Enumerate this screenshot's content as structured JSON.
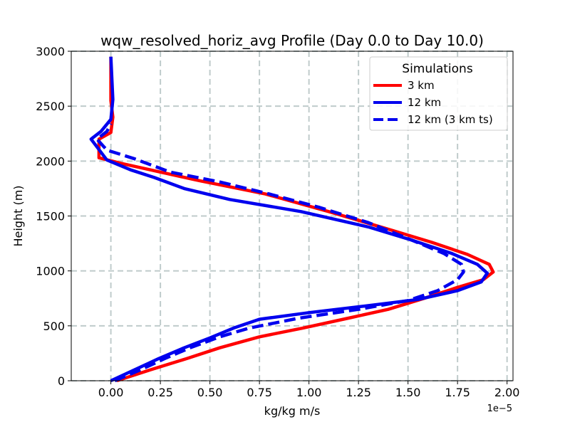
{
  "chart_data": {
    "type": "line",
    "title": "wqw_resolved_horiz_avg Profile (Day 0.0 to Day 10.0)",
    "xlabel": "kg/kg m/s",
    "ylabel": "Height (m)",
    "x_offset_label": "1e−5",
    "xlim": [
      -0.2,
      2.03
    ],
    "ylim": [
      0,
      3000
    ],
    "xticks": [
      0.0,
      0.25,
      0.5,
      0.75,
      1.0,
      1.25,
      1.5,
      1.75,
      2.0
    ],
    "xtick_labels": [
      "0.00",
      "0.25",
      "0.50",
      "0.75",
      "1.00",
      "1.25",
      "1.50",
      "1.75",
      "2.00"
    ],
    "yticks": [
      0,
      500,
      1000,
      1500,
      2000,
      2500,
      3000
    ],
    "ytick_labels": [
      "0",
      "500",
      "1000",
      "1500",
      "2000",
      "2500",
      "3000"
    ],
    "grid": true,
    "legend": {
      "title": "Simulations",
      "location": "top-right"
    },
    "series": [
      {
        "name": "3 km",
        "color": "#ff0000",
        "linestyle": "solid",
        "points": [
          [
            0.03,
            0
          ],
          [
            0.2,
            100
          ],
          [
            0.38,
            200
          ],
          [
            0.55,
            300
          ],
          [
            0.75,
            400
          ],
          [
            0.97,
            480
          ],
          [
            1.2,
            570
          ],
          [
            1.4,
            650
          ],
          [
            1.58,
            750
          ],
          [
            1.75,
            850
          ],
          [
            1.88,
            920
          ],
          [
            1.93,
            990
          ],
          [
            1.91,
            1060
          ],
          [
            1.8,
            1150
          ],
          [
            1.62,
            1260
          ],
          [
            1.4,
            1380
          ],
          [
            1.1,
            1540
          ],
          [
            0.78,
            1700
          ],
          [
            0.45,
            1820
          ],
          [
            0.2,
            1920
          ],
          [
            0.05,
            1980
          ],
          [
            -0.06,
            2030
          ],
          [
            -0.06,
            2200
          ],
          [
            0.0,
            2260
          ],
          [
            0.01,
            2400
          ],
          [
            0.0,
            2550
          ],
          [
            0.0,
            2950
          ]
        ]
      },
      {
        "name": "12 km",
        "color": "#0000ee",
        "linestyle": "solid",
        "points": [
          [
            0.0,
            0
          ],
          [
            0.12,
            100
          ],
          [
            0.24,
            200
          ],
          [
            0.37,
            300
          ],
          [
            0.5,
            390
          ],
          [
            0.62,
            480
          ],
          [
            0.75,
            560
          ],
          [
            1.0,
            620
          ],
          [
            1.28,
            680
          ],
          [
            1.55,
            740
          ],
          [
            1.75,
            820
          ],
          [
            1.87,
            900
          ],
          [
            1.9,
            980
          ],
          [
            1.85,
            1060
          ],
          [
            1.72,
            1160
          ],
          [
            1.52,
            1280
          ],
          [
            1.3,
            1400
          ],
          [
            0.96,
            1540
          ],
          [
            0.6,
            1650
          ],
          [
            0.37,
            1750
          ],
          [
            0.22,
            1850
          ],
          [
            0.1,
            1920
          ],
          [
            -0.02,
            2010
          ],
          [
            -0.1,
            2200
          ],
          [
            -0.05,
            2270
          ],
          [
            0.0,
            2380
          ],
          [
            0.01,
            2560
          ],
          [
            0.0,
            2950
          ]
        ]
      },
      {
        "name": "12 km (3 km ts)",
        "color": "#0000ee",
        "linestyle": "dashed",
        "points": [
          [
            0.02,
            0
          ],
          [
            0.15,
            100
          ],
          [
            0.27,
            200
          ],
          [
            0.4,
            300
          ],
          [
            0.55,
            400
          ],
          [
            0.7,
            480
          ],
          [
            0.95,
            570
          ],
          [
            1.25,
            650
          ],
          [
            1.5,
            730
          ],
          [
            1.65,
            820
          ],
          [
            1.75,
            920
          ],
          [
            1.78,
            990
          ],
          [
            1.77,
            1060
          ],
          [
            1.68,
            1160
          ],
          [
            1.52,
            1280
          ],
          [
            1.3,
            1440
          ],
          [
            1.05,
            1580
          ],
          [
            0.8,
            1700
          ],
          [
            0.55,
            1810
          ],
          [
            0.3,
            1900
          ],
          [
            0.12,
            2020
          ],
          [
            -0.02,
            2100
          ],
          [
            -0.07,
            2200
          ],
          [
            -0.02,
            2270
          ],
          [
            0.0,
            2340
          ]
        ]
      }
    ]
  }
}
